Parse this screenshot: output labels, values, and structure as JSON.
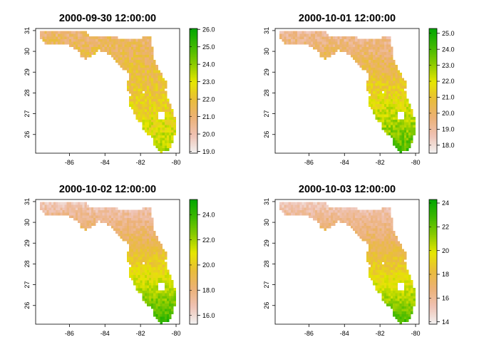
{
  "chart_data": [
    {
      "type": "heatmap",
      "title": "2000-09-30 12:00:00",
      "x_ticks": [
        "-86",
        "-84",
        "-82",
        "-80"
      ],
      "x_tick_values": [
        -86,
        -84,
        -82,
        -80
      ],
      "y_ticks": [
        "26",
        "27",
        "28",
        "29",
        "30",
        "31"
      ],
      "y_tick_values": [
        26,
        27,
        28,
        29,
        30,
        31
      ],
      "xlim": [
        -87.9,
        -79.8
      ],
      "ylim": [
        25.1,
        31.1
      ],
      "legend_ticks": [
        "19.0",
        "20.0",
        "21.0",
        "22.0",
        "23.0",
        "24.0",
        "25.0",
        "26.0"
      ],
      "legend_values": [
        19,
        20,
        21,
        22,
        23,
        24,
        25,
        26
      ],
      "legend_range": [
        18.9,
        26.05
      ],
      "values_north_panhandle": 21.0,
      "values_south_peninsula": 23.5
    },
    {
      "type": "heatmap",
      "title": "2000-10-01 12:00:00",
      "x_ticks": [
        "-86",
        "-84",
        "-82",
        "-80"
      ],
      "x_tick_values": [
        -86,
        -84,
        -82,
        -80
      ],
      "y_ticks": [
        "26",
        "27",
        "28",
        "29",
        "30",
        "31"
      ],
      "y_tick_values": [
        26,
        27,
        28,
        29,
        30,
        31
      ],
      "xlim": [
        -87.9,
        -79.8
      ],
      "ylim": [
        25.1,
        31.1
      ],
      "legend_ticks": [
        "18.0",
        "19.0",
        "20.0",
        "21.0",
        "22.0",
        "23.0",
        "24.0",
        "25.0"
      ],
      "legend_values": [
        18,
        19,
        20,
        21,
        22,
        23,
        24,
        25
      ],
      "legend_range": [
        17.5,
        25.3
      ],
      "values_north_panhandle": 19.0,
      "values_south_peninsula": 24.0
    },
    {
      "type": "heatmap",
      "title": "2000-10-02 12:00:00",
      "x_ticks": [
        "-86",
        "-84",
        "-82",
        "-80"
      ],
      "x_tick_values": [
        -86,
        -84,
        -82,
        -80
      ],
      "y_ticks": [
        "26",
        "27",
        "28",
        "29",
        "30",
        "31"
      ],
      "y_tick_values": [
        26,
        27,
        28,
        29,
        30,
        31
      ],
      "xlim": [
        -87.9,
        -79.8
      ],
      "ylim": [
        25.1,
        31.1
      ],
      "legend_ticks": [
        "16.0",
        "18.0",
        "20.0",
        "22.0",
        "24.0"
      ],
      "legend_values": [
        16,
        18,
        20,
        22,
        24
      ],
      "legend_range": [
        15.3,
        25.2
      ],
      "values_north_panhandle": 16.5,
      "values_south_peninsula": 24.0
    },
    {
      "type": "heatmap",
      "title": "2000-10-03 12:00:00",
      "x_ticks": [
        "-86",
        "-84",
        "-82",
        "-80"
      ],
      "x_tick_values": [
        -86,
        -84,
        -82,
        -80
      ],
      "y_ticks": [
        "26",
        "27",
        "28",
        "29",
        "30",
        "31"
      ],
      "y_tick_values": [
        26,
        27,
        28,
        29,
        30,
        31
      ],
      "xlim": [
        -87.9,
        -79.8
      ],
      "ylim": [
        25.1,
        31.1
      ],
      "legend_ticks": [
        "14",
        "16",
        "18",
        "20",
        "22",
        "24"
      ],
      "legend_values": [
        14,
        16,
        18,
        20,
        22,
        24
      ],
      "legend_range": [
        13.8,
        24.3
      ],
      "values_north_panhandle": 15.0,
      "values_south_peninsula": 22.5
    }
  ],
  "colors": {
    "terrain_palette": [
      "#00A600",
      "#3DB800",
      "#8BCB00",
      "#E6E600",
      "#E9BD3A",
      "#ECB176",
      "#EFC2B3",
      "#F2F2F2"
    ],
    "axis": "#000000",
    "background": "#ffffff"
  }
}
